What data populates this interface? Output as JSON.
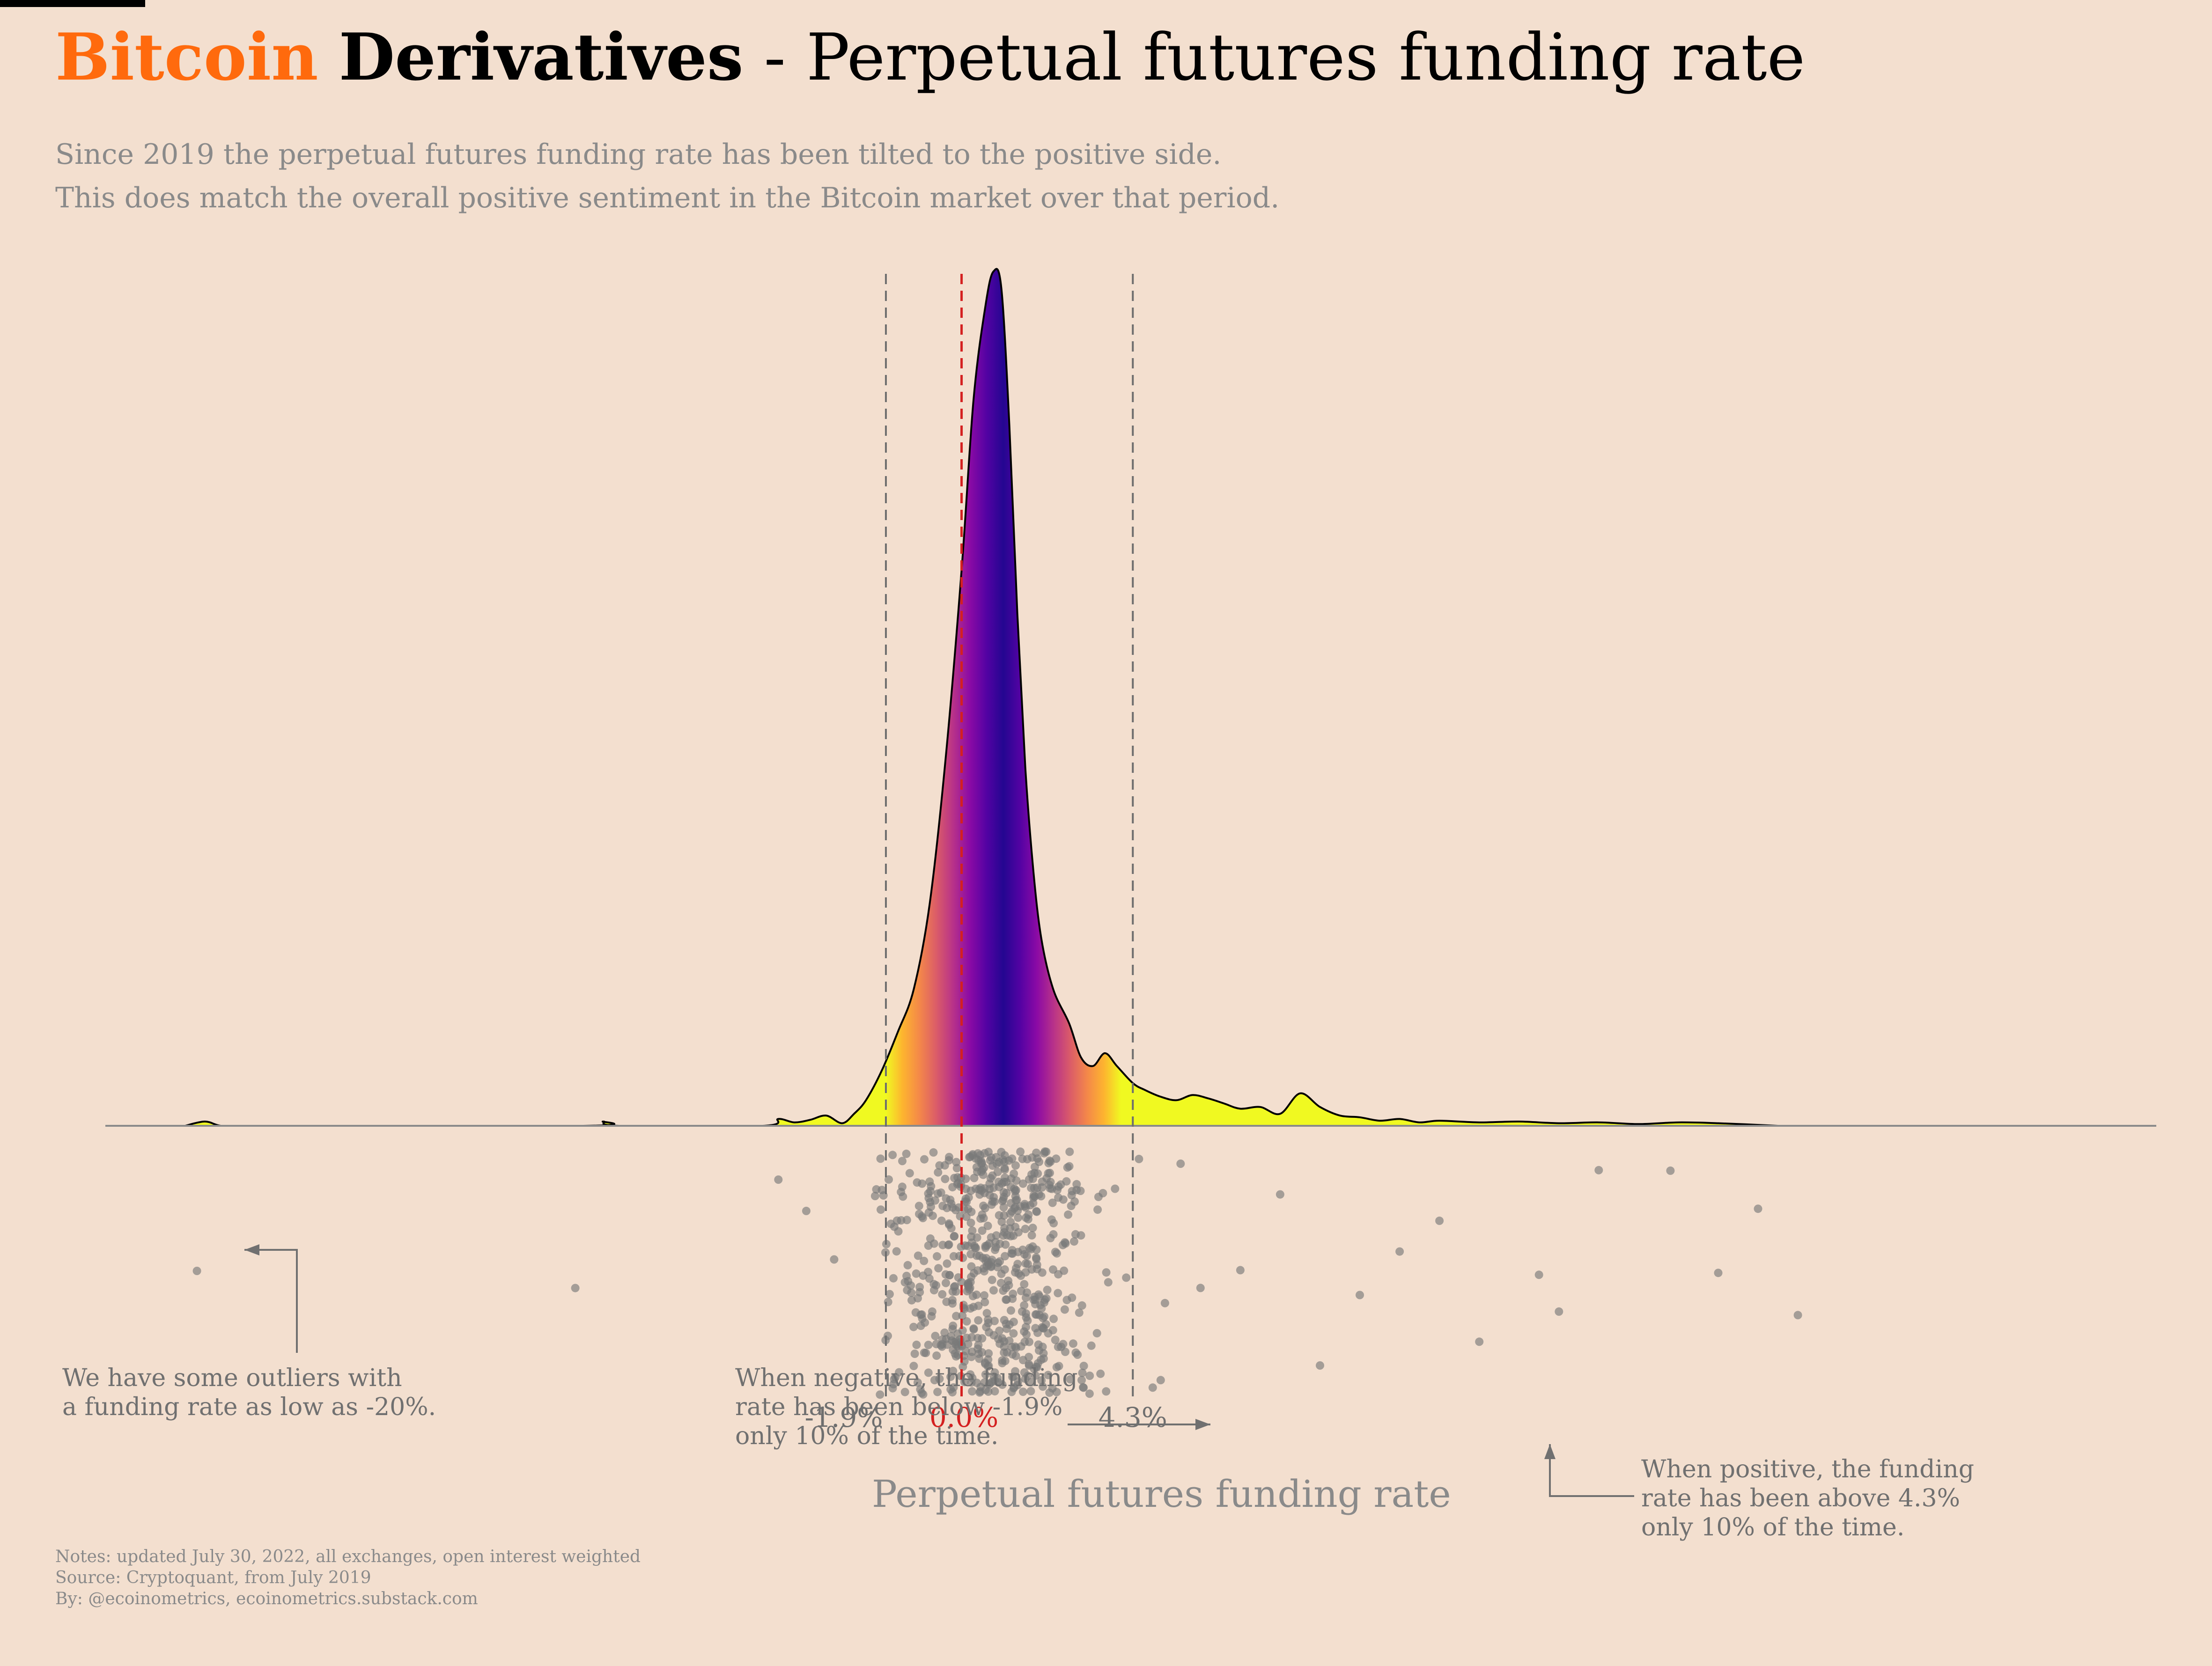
{
  "header": {
    "title_part1": "Bitcoin",
    "title_part2": "Derivatives",
    "title_part3": "- Perpetual futures funding rate",
    "subtitle_line1": "Since 2019 the perpetual futures funding rate has been tilted to the positive side.",
    "subtitle_line2": "This does match the overall positive sentiment in the Bitcoin market over that period.",
    "title_accent_color": "#ff6a0d"
  },
  "chart_data": {
    "type": "density",
    "xlabel": "Perpetual futures funding rate",
    "xlim": [
      -21.5,
      30
    ],
    "marked_values": [
      {
        "label": "-1.9%",
        "value": -1.9,
        "color": "#6e6e6e"
      },
      {
        "label": "0.0%",
        "value": 0.0,
        "color": "#d42020"
      },
      {
        "label": "4.3%",
        "value": 4.3,
        "color": "#6e6e6e"
      }
    ],
    "density_curve": {
      "x": [
        -19.5,
        -19,
        -18.6,
        -18,
        -9.5,
        -9,
        -8.6,
        -5,
        -4.6,
        -4.2,
        -3.8,
        -3.4,
        -3.0,
        -2.7,
        -2.4,
        -2.0,
        -1.6,
        -1.2,
        -0.8,
        -0.4,
        0.0,
        0.3,
        0.6,
        0.8,
        1.0,
        1.2,
        1.4,
        1.6,
        1.8,
        2.0,
        2.3,
        2.7,
        3.0,
        3.3,
        3.6,
        3.9,
        4.3,
        4.6,
        5.0,
        5.4,
        5.8,
        6.2,
        6.6,
        7.0,
        7.5,
        8.0,
        8.5,
        9.0,
        9.5,
        10.0,
        10.5,
        11.0,
        11.5,
        12,
        13,
        14,
        15,
        16,
        17,
        18,
        19,
        20.5
      ],
      "y": [
        0.0,
        0.005,
        0.0,
        0.0,
        0.0,
        0.005,
        0.0,
        0.0,
        0.008,
        0.004,
        0.007,
        0.012,
        0.003,
        0.014,
        0.03,
        0.065,
        0.11,
        0.16,
        0.26,
        0.43,
        0.65,
        0.85,
        0.96,
        1.0,
        0.98,
        0.82,
        0.6,
        0.42,
        0.3,
        0.22,
        0.16,
        0.12,
        0.08,
        0.07,
        0.085,
        0.07,
        0.05,
        0.042,
        0.034,
        0.03,
        0.036,
        0.032,
        0.026,
        0.02,
        0.022,
        0.014,
        0.038,
        0.022,
        0.012,
        0.01,
        0.006,
        0.008,
        0.004,
        0.006,
        0.004,
        0.005,
        0.003,
        0.004,
        0.002,
        0.004,
        0.003,
        0.0
      ]
    },
    "density_gradient": [
      "#f0f921",
      "#fdb42f",
      "#f48849",
      "#db5c68",
      "#b83289",
      "#8b0aa5",
      "#5302a3",
      "#240691"
    ],
    "scatter_points": [
      -19.2,
      -9.7,
      -4.6,
      -3.9,
      -3.2,
      14.5,
      17.8,
      9.0,
      10.0,
      11.0,
      12.0,
      13.0,
      15.0,
      16.0,
      19.0,
      20.0,
      21.0,
      -2.0,
      6.0,
      7.0,
      8.0,
      5.5,
      5.0,
      4.8
    ]
  },
  "annotations": {
    "outliers": [
      "We have some outliers with",
      "a funding rate as low as -20%."
    ],
    "negative": [
      "When negative, the funding",
      "rate has been below -1.9%",
      "only 10% of the time."
    ],
    "positive": [
      "When positive, the funding",
      "rate has been above 4.3%",
      "only 10% of the time."
    ]
  },
  "footer": {
    "notes": "Notes: updated July 30, 2022, all exchanges, open interest weighted",
    "source": "Source: Cryptoquant, from July 2019",
    "by": "By: @ecoinometrics, ecoinometrics.substack.com"
  }
}
